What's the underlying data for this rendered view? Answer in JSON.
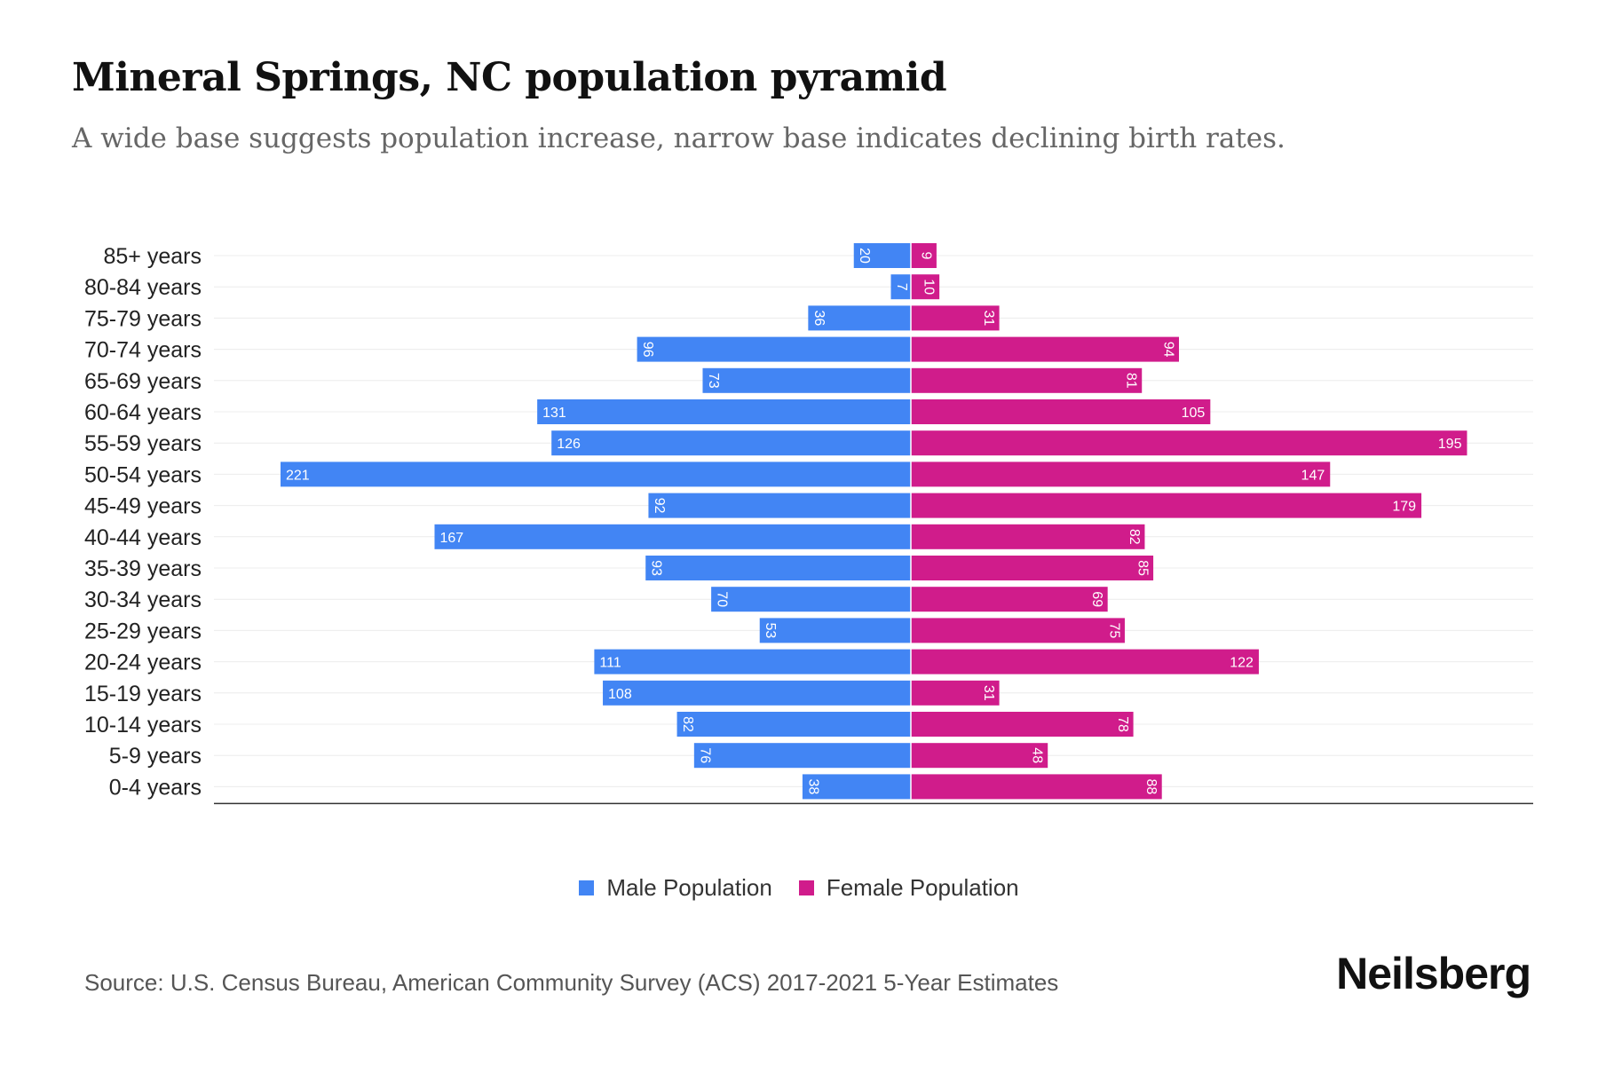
{
  "title": "Mineral Springs, NC population pyramid",
  "subtitle": "A wide base suggests population increase, narrow base indicates declining birth rates.",
  "source": "Source: U.S. Census Bureau, American Community Survey (ACS) 2017-2021 5-Year Estimates",
  "logo": "Neilsberg",
  "colors": {
    "male": "#4285f4",
    "female": "#d01c8b"
  },
  "chart_data": {
    "type": "bar",
    "orientation": "horizontal-pyramid",
    "title": "Mineral Springs, NC population pyramid",
    "categories": [
      "85+ years",
      "80-84 years",
      "75-79 years",
      "70-74 years",
      "65-69 years",
      "60-64 years",
      "55-59 years",
      "50-54 years",
      "45-49 years",
      "40-44 years",
      "35-39 years",
      "30-34 years",
      "25-29 years",
      "20-24 years",
      "15-19 years",
      "10-14 years",
      "5-9 years",
      "0-4 years"
    ],
    "series": [
      {
        "name": "Male Population",
        "values": [
          20,
          7,
          36,
          96,
          73,
          131,
          126,
          221,
          92,
          167,
          93,
          70,
          53,
          111,
          108,
          82,
          76,
          38
        ]
      },
      {
        "name": "Female Population",
        "values": [
          9,
          10,
          31,
          94,
          81,
          105,
          195,
          147,
          179,
          82,
          85,
          69,
          75,
          122,
          31,
          78,
          48,
          88
        ]
      }
    ],
    "xlim": [
      -221,
      221
    ],
    "grid": true,
    "legend": "bottom-center"
  }
}
